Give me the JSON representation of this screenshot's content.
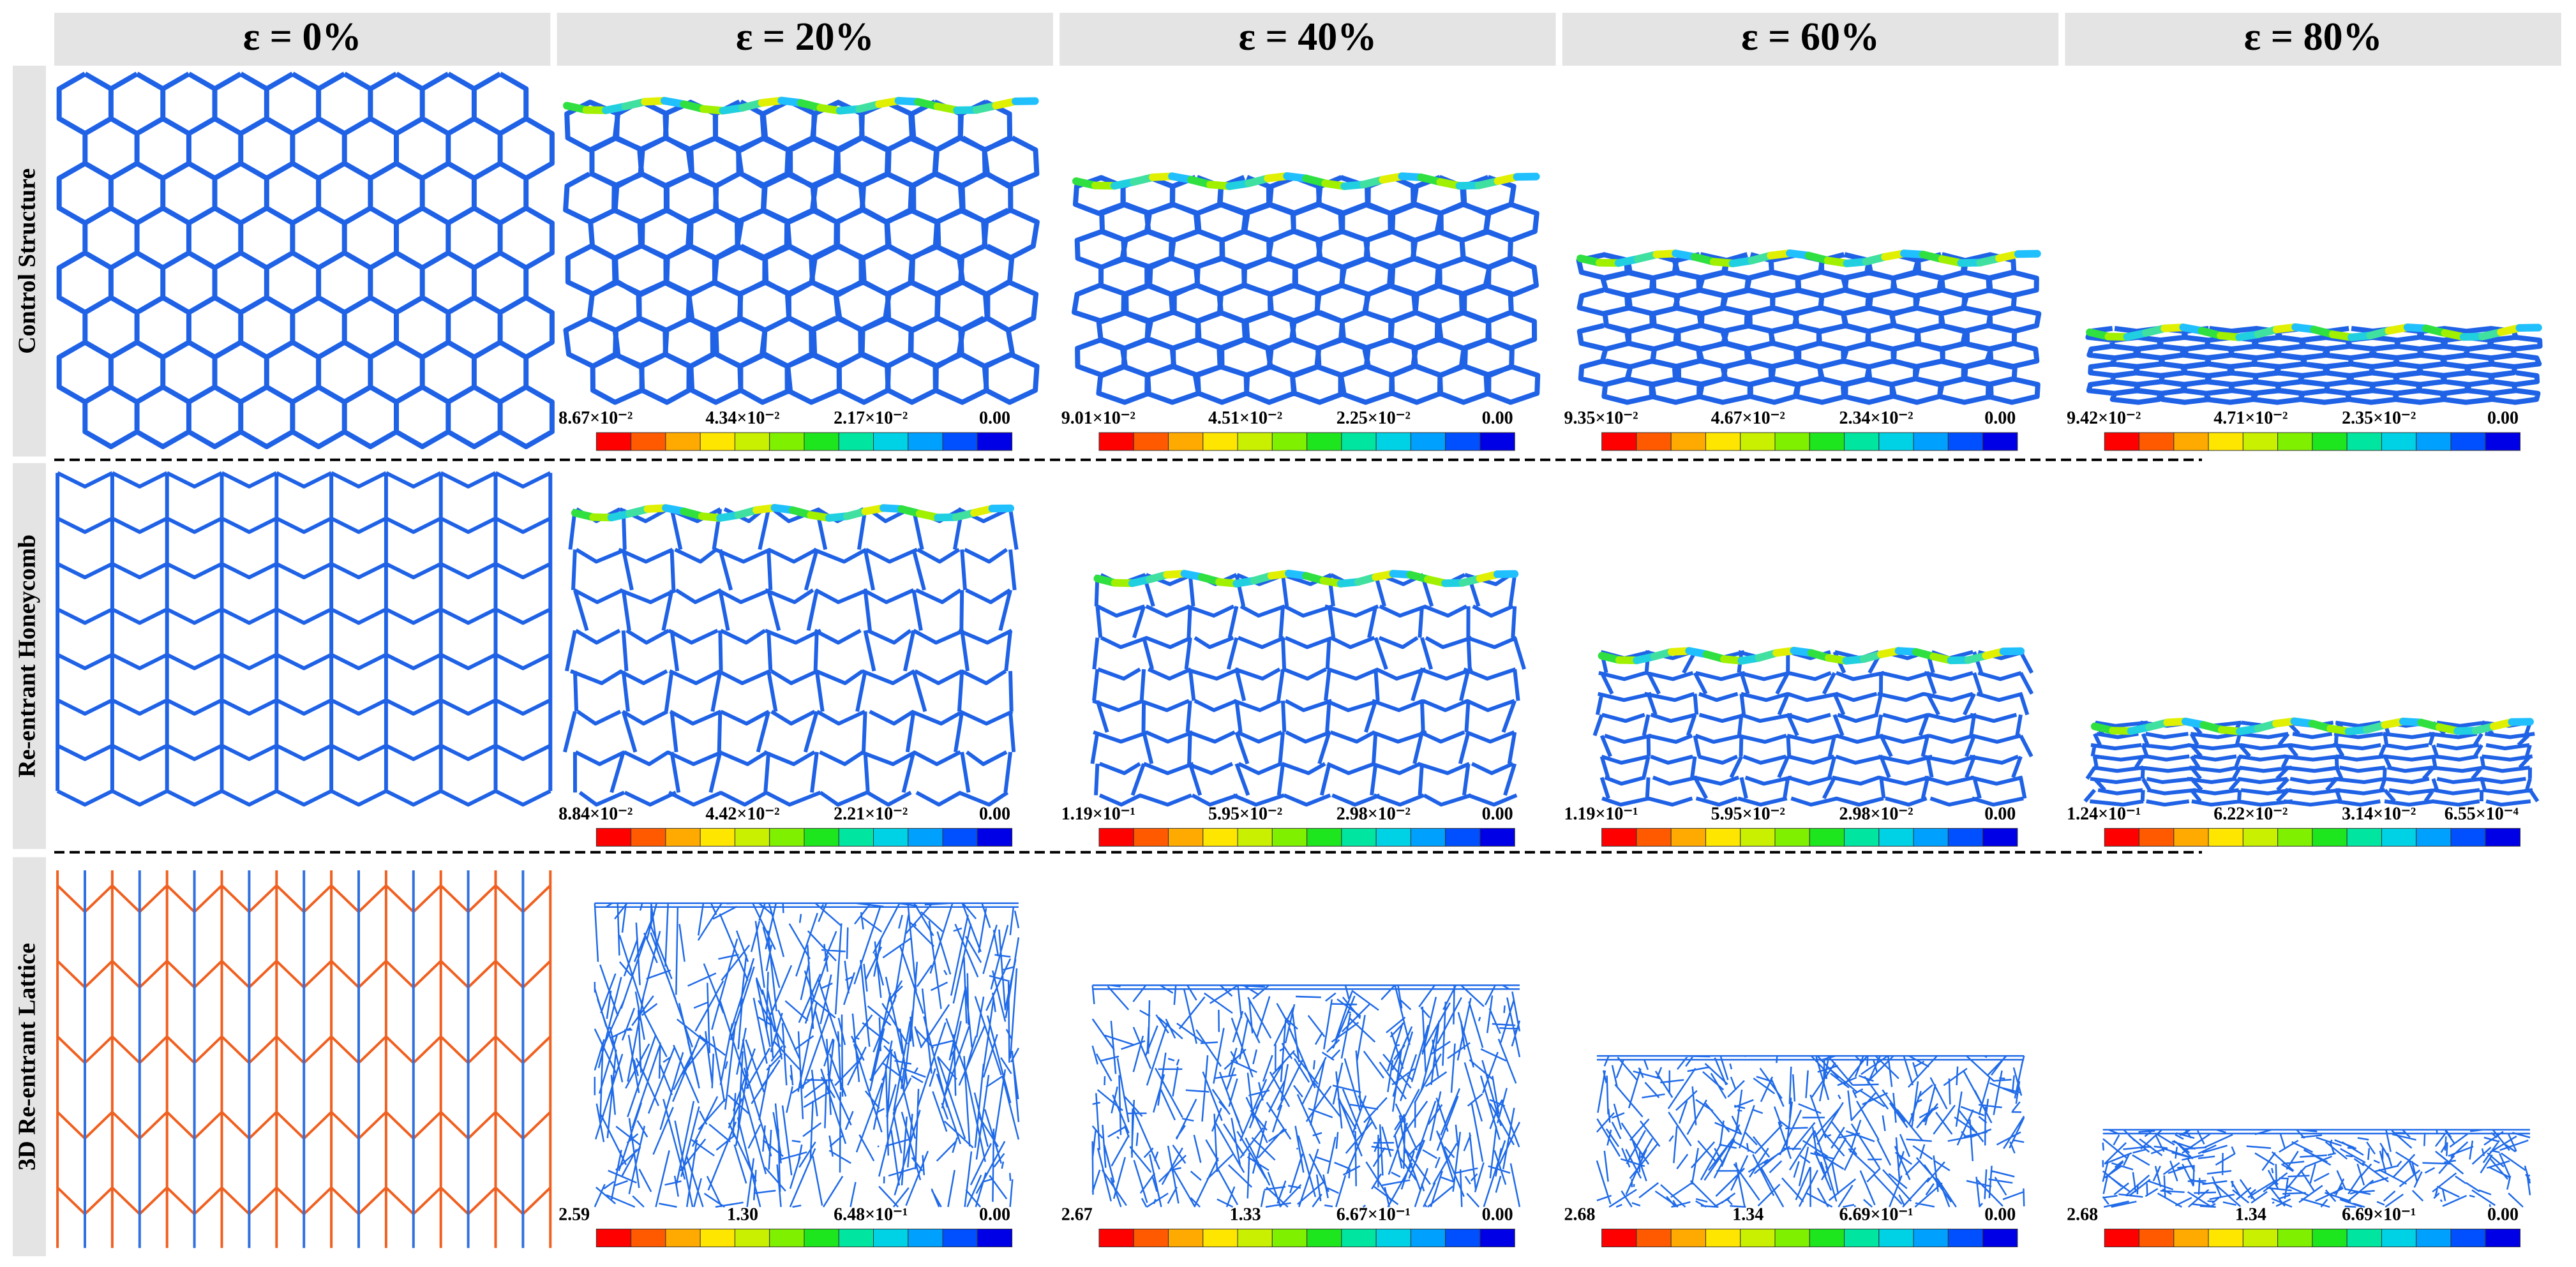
{
  "header": {
    "columns": [
      "ε = 0%",
      "ε = 20%",
      "ε = 40%",
      "ε = 60%",
      "ε = 80%"
    ]
  },
  "rows": [
    {
      "label": "Control Structure",
      "colorbars": [
        [
          "8.67×10⁻²",
          "4.34×10⁻²",
          "2.17×10⁻²",
          "0.00"
        ],
        [
          "9.01×10⁻²",
          "4.51×10⁻²",
          "2.25×10⁻²",
          "0.00"
        ],
        [
          "9.35×10⁻²",
          "4.67×10⁻²",
          "2.34×10⁻²",
          "0.00"
        ],
        [
          "9.42×10⁻²",
          "4.71×10⁻²",
          "2.35×10⁻²",
          "0.00"
        ]
      ]
    },
    {
      "label": "Re-entrant Honeycomb",
      "colorbars": [
        [
          "8.84×10⁻²",
          "4.42×10⁻²",
          "2.21×10⁻²",
          "0.00"
        ],
        [
          "1.19×10⁻¹",
          "5.95×10⁻²",
          "2.98×10⁻²",
          "0.00"
        ],
        [
          "1.19×10⁻¹",
          "5.95×10⁻²",
          "2.98×10⁻²",
          "0.00"
        ],
        [
          "1.24×10⁻¹",
          "6.22×10⁻²",
          "3.14×10⁻²",
          "6.55×10⁻⁴"
        ]
      ]
    },
    {
      "label": "3D Re-entrant Lattice",
      "colorbars": [
        [
          "2.59",
          "1.30",
          "6.48×10⁻¹",
          "0.00"
        ],
        [
          "2.67",
          "1.33",
          "6.67×10⁻¹",
          "0.00"
        ],
        [
          "2.68",
          "1.34",
          "6.69×10⁻¹",
          "0.00"
        ],
        [
          "2.68",
          "1.34",
          "6.69×10⁻¹",
          "0.00"
        ]
      ]
    }
  ]
}
